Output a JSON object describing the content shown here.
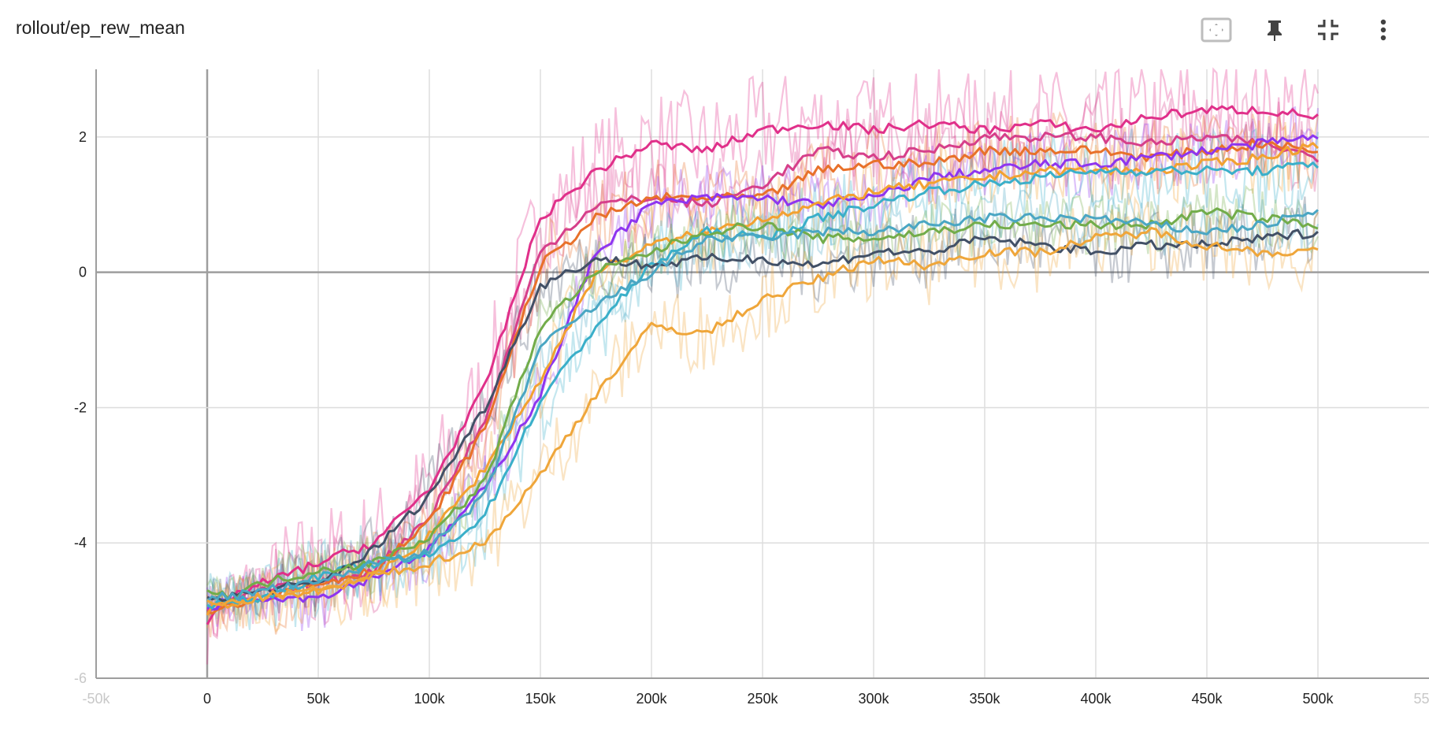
{
  "card": {
    "title": "rollout/ep_rew_mean"
  },
  "toolbar": {
    "buttons": [
      {
        "name": "fit-domain-button",
        "icon": "fit-to-data-icon"
      },
      {
        "name": "pin-button",
        "icon": "pin-icon"
      },
      {
        "name": "collapse-button",
        "icon": "collapse-icon"
      },
      {
        "name": "more-button",
        "icon": "more-vert-icon"
      }
    ]
  },
  "colors": {
    "grid": "#dddddd",
    "axis": "#9e9e9e",
    "text": "#212121",
    "tick_faint": "#c8c8c8"
  },
  "chart_data": {
    "type": "line",
    "title": "",
    "xlabel": "",
    "ylabel": "",
    "xlim": [
      -50000,
      550000
    ],
    "ylim": [
      -6,
      3
    ],
    "x_ticks": [
      {
        "value": -50000,
        "label": "-50k",
        "faint": true
      },
      {
        "value": 0,
        "label": "0"
      },
      {
        "value": 50000,
        "label": "50k"
      },
      {
        "value": 100000,
        "label": "100k"
      },
      {
        "value": 150000,
        "label": "150k"
      },
      {
        "value": 200000,
        "label": "200k"
      },
      {
        "value": 250000,
        "label": "250k"
      },
      {
        "value": 300000,
        "label": "300k"
      },
      {
        "value": 350000,
        "label": "350k"
      },
      {
        "value": 400000,
        "label": "400k"
      },
      {
        "value": 450000,
        "label": "450k"
      },
      {
        "value": 500000,
        "label": "500k"
      },
      {
        "value": 550000,
        "label": "550k",
        "faint": true
      }
    ],
    "y_ticks": [
      {
        "value": 2,
        "label": "2"
      },
      {
        "value": 0,
        "label": "0"
      },
      {
        "value": -2,
        "label": "-2"
      },
      {
        "value": -4,
        "label": "-4"
      },
      {
        "value": -6,
        "label": "-6",
        "faint": true
      }
    ],
    "x": [
      0,
      10000,
      25000,
      50000,
      75000,
      100000,
      125000,
      150000,
      175000,
      200000,
      225000,
      250000,
      275000,
      300000,
      325000,
      350000,
      375000,
      400000,
      425000,
      450000,
      475000,
      500000
    ],
    "raw_opacity": 0.3,
    "series": [
      {
        "color": "#e0308a",
        "smoothed": [
          -5.2,
          -4.8,
          -4.6,
          -4.3,
          -4.0,
          -3.2,
          -1.7,
          0.8,
          1.5,
          1.9,
          1.8,
          2.1,
          2.2,
          2.1,
          2.2,
          2.1,
          2.2,
          2.1,
          2.3,
          2.4,
          2.4,
          2.3
        ],
        "noise": 0.85
      },
      {
        "color": "#d63f8a",
        "smoothed": [
          -5.0,
          -4.9,
          -4.7,
          -4.6,
          -4.4,
          -3.6,
          -2.2,
          0.3,
          1.0,
          1.1,
          1.0,
          1.3,
          1.8,
          1.7,
          1.8,
          2.0,
          2.0,
          2.0,
          1.9,
          2.0,
          1.9,
          1.7
        ],
        "noise": 0.7
      },
      {
        "color": "#e8712a",
        "smoothed": [
          -5.0,
          -4.9,
          -4.8,
          -4.6,
          -4.4,
          -3.7,
          -2.3,
          0.1,
          0.8,
          1.1,
          1.1,
          1.1,
          1.5,
          1.6,
          1.6,
          1.8,
          1.8,
          1.8,
          1.7,
          1.8,
          1.9,
          1.8
        ],
        "noise": 0.6
      },
      {
        "color": "#8e35ef",
        "smoothed": [
          -5.0,
          -4.8,
          -4.8,
          -4.8,
          -4.5,
          -4.1,
          -3.2,
          -1.8,
          0.3,
          1.0,
          1.1,
          1.1,
          1.0,
          1.1,
          1.4,
          1.5,
          1.6,
          1.6,
          1.7,
          1.8,
          1.9,
          2.0
        ],
        "noise": 0.5
      },
      {
        "color": "#f2a131",
        "smoothed": [
          -5.0,
          -4.9,
          -4.8,
          -4.7,
          -4.5,
          -3.9,
          -2.9,
          -1.6,
          0.0,
          0.4,
          0.6,
          0.8,
          1.0,
          1.2,
          1.3,
          1.4,
          1.5,
          1.5,
          1.5,
          1.6,
          1.7,
          1.9
        ],
        "noise": 0.6
      },
      {
        "color": "#3aafc9",
        "smoothed": [
          -4.9,
          -4.9,
          -4.8,
          -4.5,
          -4.3,
          -4.2,
          -3.6,
          -1.9,
          -0.8,
          0.1,
          0.6,
          0.5,
          0.8,
          1.0,
          1.2,
          1.3,
          1.4,
          1.5,
          1.5,
          1.5,
          1.5,
          1.6
        ],
        "noise": 0.65
      },
      {
        "color": "#425066",
        "smoothed": [
          -4.8,
          -4.8,
          -4.7,
          -4.6,
          -4.1,
          -3.3,
          -2.0,
          -0.2,
          0.2,
          0.1,
          0.2,
          0.2,
          0.1,
          0.3,
          0.3,
          0.5,
          0.4,
          0.3,
          0.4,
          0.4,
          0.5,
          0.6
        ],
        "noise": 0.55
      },
      {
        "color": "#72ac4a",
        "smoothed": [
          -4.7,
          -4.8,
          -4.6,
          -4.4,
          -4.3,
          -3.9,
          -3.1,
          -0.8,
          0.0,
          0.3,
          0.6,
          0.7,
          0.5,
          0.5,
          0.6,
          0.7,
          0.7,
          0.7,
          0.7,
          0.9,
          0.8,
          0.7
        ],
        "noise": 0.45
      },
      {
        "color": "#4aa6c3",
        "smoothed": [
          -4.8,
          -4.8,
          -4.7,
          -4.6,
          -4.3,
          -4.1,
          -3.3,
          -1.1,
          -0.5,
          0.0,
          0.5,
          0.5,
          0.6,
          0.6,
          0.7,
          0.8,
          0.8,
          0.8,
          0.7,
          0.6,
          0.7,
          0.9
        ],
        "noise": 0.5
      },
      {
        "color": "#efa63a",
        "smoothed": [
          -4.9,
          -4.9,
          -4.8,
          -4.7,
          -4.5,
          -4.3,
          -4.0,
          -3.0,
          -1.8,
          -0.8,
          -0.9,
          -0.4,
          -0.1,
          0.2,
          0.1,
          0.3,
          0.3,
          0.5,
          0.6,
          0.4,
          0.3,
          0.3
        ],
        "noise": 0.6
      }
    ]
  }
}
